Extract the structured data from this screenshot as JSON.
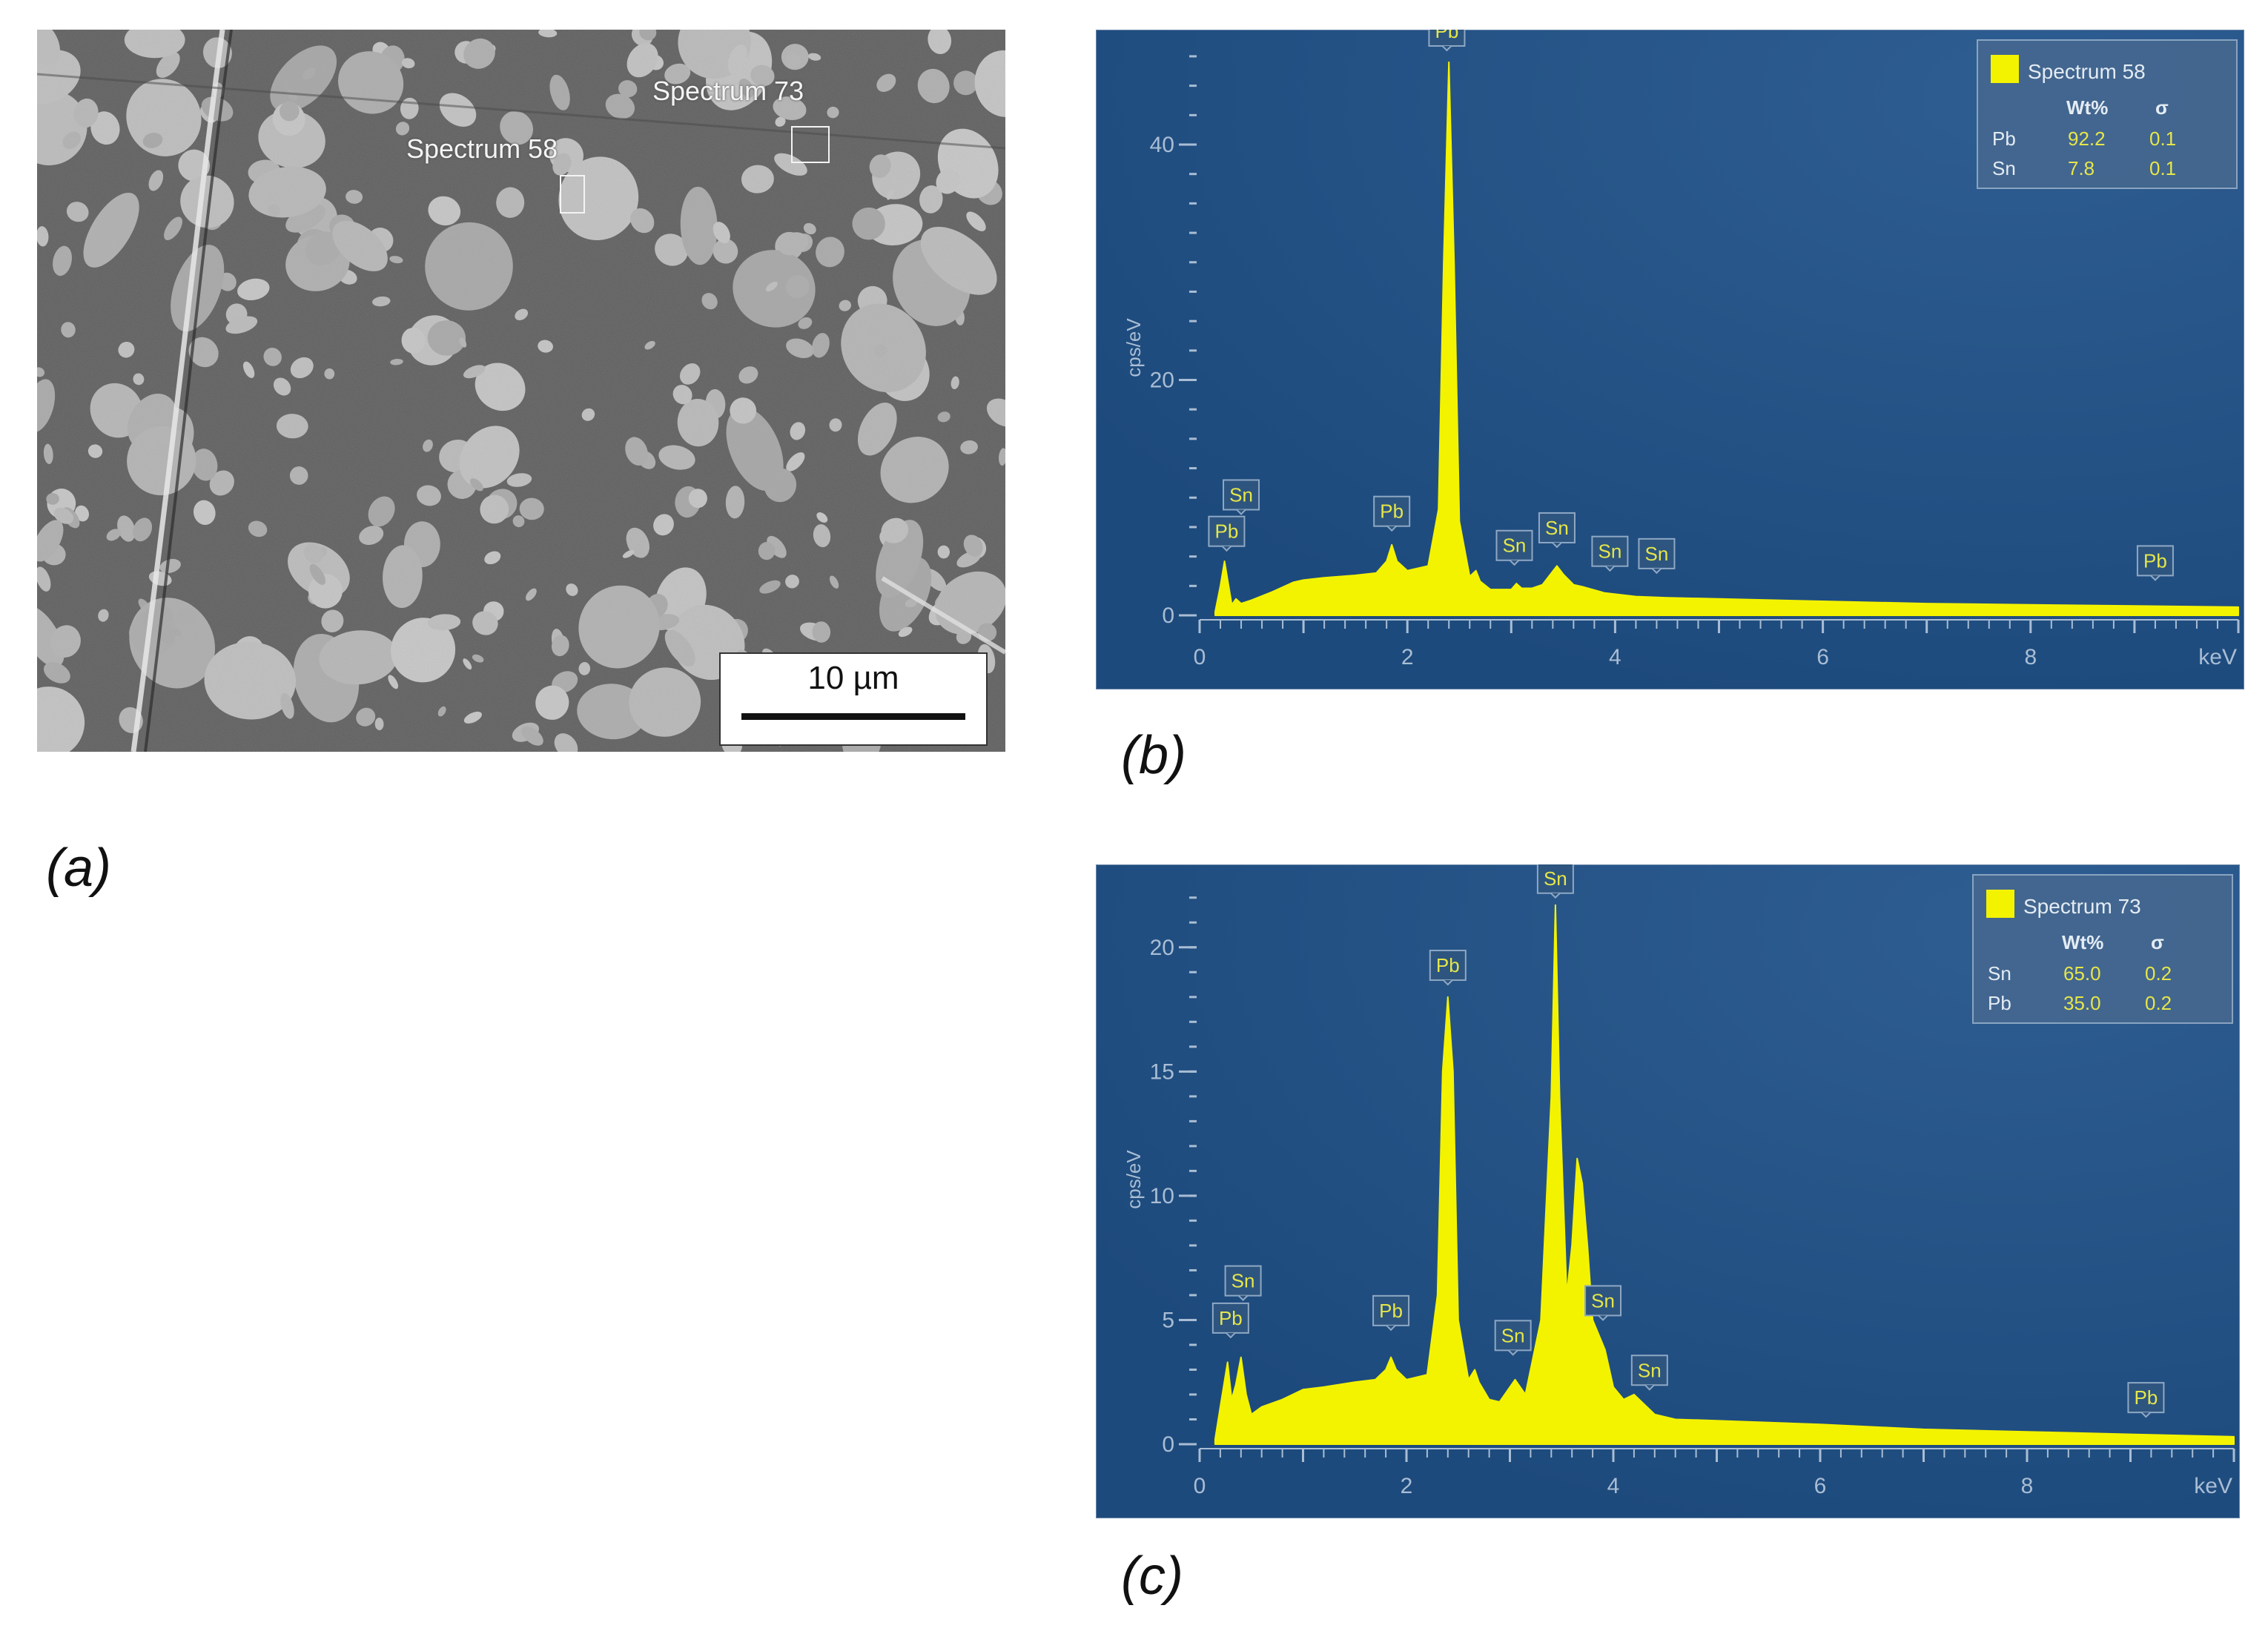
{
  "panels": {
    "a": "(a)",
    "b": "(b)",
    "c": "(c)"
  },
  "sem": {
    "scale_bar_label": "10 µm",
    "regions": [
      {
        "label": "Spectrum 58"
      },
      {
        "label": "Spectrum 73"
      }
    ]
  },
  "colors": {
    "spectrum_fill": "#f3f300",
    "plot_bg": "#1d4a7c",
    "legend_bg": "#44678f",
    "peak_label_text": "#e6e64a",
    "axis_text": "#a9bdd4"
  },
  "chart_data": [
    {
      "type": "area",
      "legend": {
        "name": "Spectrum 58",
        "headers": [
          "Wt%",
          "σ"
        ],
        "placement": "top-right"
      },
      "composition": [
        {
          "element": "Pb",
          "wt": "92.2",
          "sigma": "0.1"
        },
        {
          "element": "Sn",
          "wt": "7.8",
          "sigma": "0.1"
        }
      ],
      "xlabel": "keV",
      "ylabel": "cps/eV",
      "xlim": [
        0,
        10
      ],
      "ylim": [
        0,
        48
      ],
      "xticks": [
        0,
        2,
        4,
        6,
        8
      ],
      "yticks": [
        0,
        20,
        40
      ],
      "x": [
        0.15,
        0.2,
        0.24,
        0.27,
        0.31,
        0.35,
        0.4,
        0.5,
        0.7,
        0.9,
        1.0,
        1.2,
        1.5,
        1.7,
        1.8,
        1.85,
        1.9,
        2.0,
        2.2,
        2.3,
        2.35,
        2.4,
        2.45,
        2.5,
        2.6,
        2.66,
        2.7,
        2.8,
        3.0,
        3.05,
        3.1,
        3.2,
        3.3,
        3.44,
        3.5,
        3.6,
        3.7,
        3.9,
        4.2,
        4.5,
        5.0,
        6.0,
        7.0,
        8.0,
        9.0,
        10.0
      ],
      "y": [
        0.3,
        2.5,
        4.6,
        3.0,
        0.9,
        1.4,
        1.0,
        1.3,
        2.0,
        2.8,
        3.0,
        3.2,
        3.4,
        3.6,
        4.6,
        6.0,
        4.6,
        3.8,
        4.2,
        9.0,
        30.0,
        47.0,
        30.0,
        8.0,
        3.3,
        3.8,
        2.9,
        2.2,
        2.2,
        2.7,
        2.3,
        2.3,
        2.6,
        4.2,
        3.5,
        2.6,
        2.4,
        1.9,
        1.6,
        1.5,
        1.4,
        1.2,
        1.0,
        0.9,
        0.8,
        0.7
      ],
      "peak_labels": [
        {
          "label": "Pb",
          "x": 0.26,
          "y": 5.5
        },
        {
          "label": "Sn",
          "x": 0.4,
          "y": 8.6
        },
        {
          "label": "Pb",
          "x": 1.85,
          "y": 7.2
        },
        {
          "label": "Pb",
          "x": 2.38,
          "y": 48.0
        },
        {
          "label": "Sn",
          "x": 3.03,
          "y": 4.3
        },
        {
          "label": "Sn",
          "x": 3.44,
          "y": 5.8
        },
        {
          "label": "Sn",
          "x": 3.95,
          "y": 3.8
        },
        {
          "label": "Sn",
          "x": 4.4,
          "y": 3.6
        },
        {
          "label": "Pb",
          "x": 9.2,
          "y": 3.0
        }
      ]
    },
    {
      "type": "area",
      "legend": {
        "name": "Spectrum 73",
        "headers": [
          "Wt%",
          "σ"
        ],
        "placement": "top-right"
      },
      "composition": [
        {
          "element": "Sn",
          "wt": "65.0",
          "sigma": "0.2"
        },
        {
          "element": "Pb",
          "wt": "35.0",
          "sigma": "0.2"
        }
      ],
      "xlabel": "keV",
      "ylabel": "cps/eV",
      "xlim": [
        0,
        10
      ],
      "ylim": [
        0,
        22.5
      ],
      "xticks": [
        0,
        2,
        4,
        6,
        8
      ],
      "yticks": [
        0,
        5,
        10,
        15,
        20
      ],
      "x": [
        0.15,
        0.2,
        0.27,
        0.31,
        0.35,
        0.4,
        0.45,
        0.5,
        0.6,
        0.8,
        1.0,
        1.2,
        1.5,
        1.7,
        1.8,
        1.85,
        1.9,
        2.0,
        2.2,
        2.3,
        2.35,
        2.4,
        2.45,
        2.5,
        2.6,
        2.66,
        2.7,
        2.8,
        2.9,
        3.05,
        3.15,
        3.3,
        3.4,
        3.44,
        3.48,
        3.55,
        3.6,
        3.65,
        3.7,
        3.75,
        3.8,
        3.85,
        3.92,
        4.0,
        4.1,
        4.2,
        4.4,
        4.6,
        5.0,
        6.0,
        7.0,
        8.0,
        9.0,
        10.0
      ],
      "y": [
        0.2,
        1.5,
        3.3,
        1.8,
        2.4,
        3.5,
        2.0,
        1.2,
        1.5,
        1.8,
        2.2,
        2.3,
        2.5,
        2.6,
        3.0,
        3.5,
        3.0,
        2.6,
        2.8,
        6.0,
        15.0,
        18.0,
        15.0,
        5.0,
        2.6,
        3.0,
        2.5,
        1.8,
        1.7,
        2.6,
        2.0,
        5.0,
        14.0,
        21.7,
        14.0,
        6.0,
        8.0,
        11.5,
        10.5,
        8.0,
        5.0,
        4.5,
        3.8,
        2.3,
        1.8,
        2.0,
        1.2,
        1.0,
        0.95,
        0.8,
        0.6,
        0.5,
        0.4,
        0.3
      ],
      "peak_labels": [
        {
          "label": "Pb",
          "x": 0.3,
          "y": 4.3
        },
        {
          "label": "Sn",
          "x": 0.42,
          "y": 5.8
        },
        {
          "label": "Pb",
          "x": 1.85,
          "y": 4.6
        },
        {
          "label": "Pb",
          "x": 2.4,
          "y": 18.5
        },
        {
          "label": "Sn",
          "x": 3.03,
          "y": 3.6
        },
        {
          "label": "Sn",
          "x": 3.44,
          "y": 22.0
        },
        {
          "label": "Sn",
          "x": 3.9,
          "y": 5.0
        },
        {
          "label": "Sn",
          "x": 4.35,
          "y": 2.2
        },
        {
          "label": "Pb",
          "x": 9.15,
          "y": 1.1
        }
      ]
    }
  ]
}
